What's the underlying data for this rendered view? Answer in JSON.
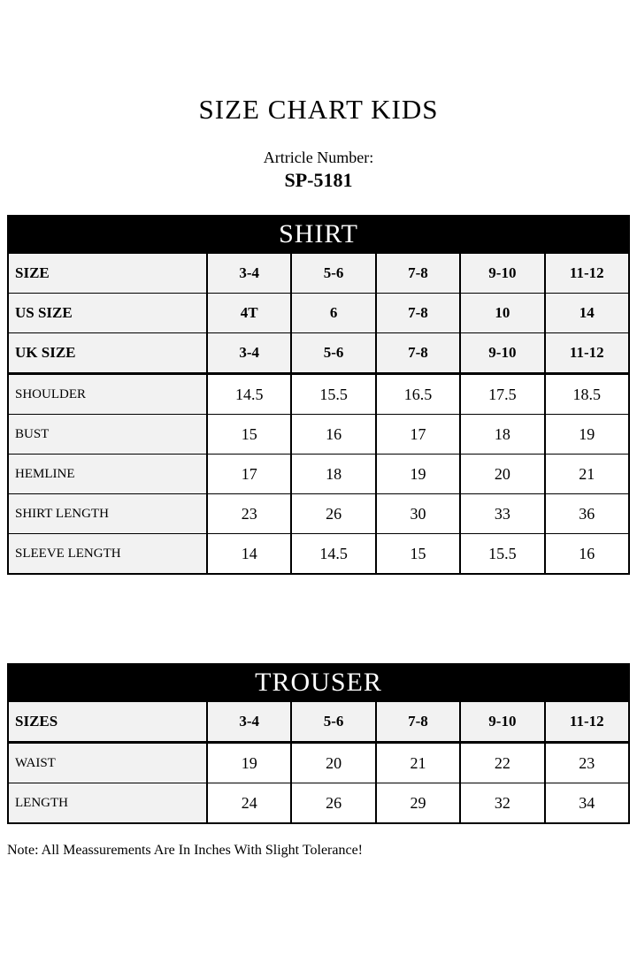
{
  "page": {
    "title": "SIZE CHART KIDS",
    "article_label": "Artricle Number:",
    "article_number": "SP-5181",
    "note": "Note: All Meassurements Are In Inches With Slight Tolerance!"
  },
  "colors": {
    "band_bg": "#000000",
    "band_text": "#ffffff",
    "shaded_row_bg": "#f2f2f2",
    "border": "#000000"
  },
  "shirt_table": {
    "header": "SHIRT",
    "size_rows": [
      {
        "label": "SIZE",
        "values": [
          "3-4",
          "5-6",
          "7-8",
          "9-10",
          "11-12"
        ]
      },
      {
        "label": "US SIZE",
        "values": [
          "4T",
          "6",
          "7-8",
          "10",
          "14"
        ]
      },
      {
        "label": "UK SIZE",
        "values": [
          "3-4",
          "5-6",
          "7-8",
          "9-10",
          "11-12"
        ]
      }
    ],
    "measurement_rows": [
      {
        "label": "SHOULDER",
        "values": [
          "14.5",
          "15.5",
          "16.5",
          "17.5",
          "18.5"
        ]
      },
      {
        "label": "BUST",
        "values": [
          "15",
          "16",
          "17",
          "18",
          "19"
        ]
      },
      {
        "label": "HEMLINE",
        "values": [
          "17",
          "18",
          "19",
          "20",
          "21"
        ]
      },
      {
        "label": "SHIRT LENGTH",
        "values": [
          "23",
          "26",
          "30",
          "33",
          "36"
        ]
      },
      {
        "label": "SLEEVE LENGTH",
        "values": [
          "14",
          "14.5",
          "15",
          "15.5",
          "16"
        ]
      }
    ]
  },
  "trouser_table": {
    "header": "TROUSER",
    "size_rows": [
      {
        "label": "SIZES",
        "values": [
          "3-4",
          "5-6",
          "7-8",
          "9-10",
          "11-12"
        ]
      }
    ],
    "measurement_rows": [
      {
        "label": "WAIST",
        "values": [
          "19",
          "20",
          "21",
          "22",
          "23"
        ]
      },
      {
        "label": "LENGTH",
        "values": [
          "24",
          "26",
          "29",
          "32",
          "34"
        ]
      }
    ]
  }
}
